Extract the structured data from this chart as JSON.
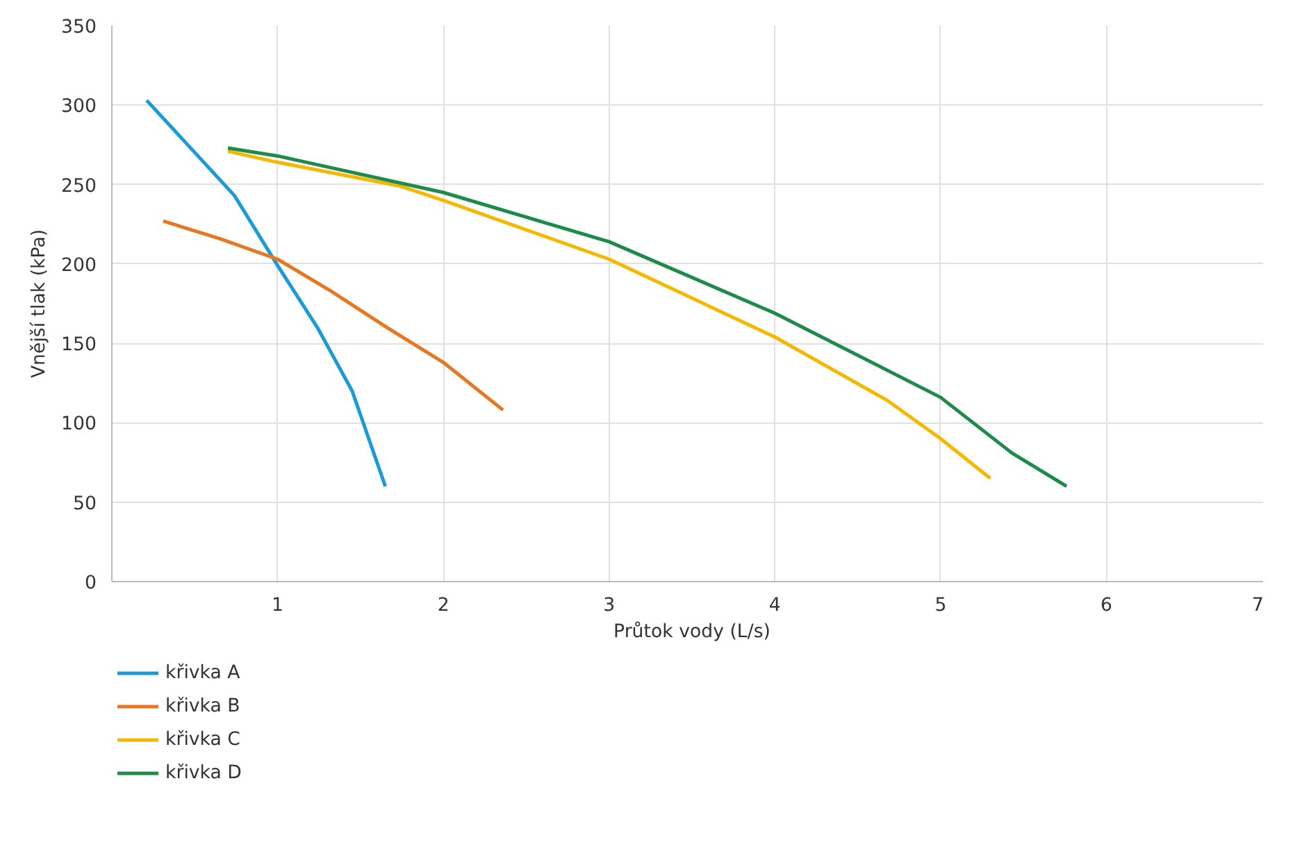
{
  "chart_data": {
    "type": "line",
    "xlabel": "Průtok vody (L/s)",
    "ylabel": "Vnější tlak (kPa)",
    "xlim": [
      0,
      7
    ],
    "ylim": [
      0,
      350
    ],
    "xticks": [
      1,
      2,
      3,
      4,
      5,
      6,
      7
    ],
    "yticks": [
      0,
      50,
      100,
      150,
      200,
      250,
      300,
      350
    ],
    "grid": true,
    "legend": "bottom left",
    "line_style": "solid",
    "series": [
      {
        "name": "křivka A",
        "color": "#1a9ad6",
        "x": [
          0.21,
          0.44,
          0.74,
          1.0,
          1.24,
          1.45,
          1.65
        ],
        "values": [
          303,
          277,
          243,
          199,
          160,
          120,
          60
        ]
      },
      {
        "name": "křivka B",
        "color": "#e87722",
        "x": [
          0.31,
          0.65,
          1.0,
          1.32,
          1.66,
          2.0,
          2.36
        ],
        "values": [
          227,
          216,
          203,
          183,
          160,
          138,
          108
        ]
      },
      {
        "name": "křivka C",
        "color": "#f5b800",
        "x": [
          0.7,
          1.0,
          1.74,
          2.0,
          3.0,
          4.0,
          4.68,
          5.0,
          5.3
        ],
        "values": [
          271,
          264,
          249,
          240,
          203,
          154,
          114,
          90,
          65
        ]
      },
      {
        "name": "křivka D",
        "color": "#1e8a4c",
        "x": [
          0.7,
          1.0,
          2.0,
          3.0,
          4.0,
          5.0,
          5.43,
          5.76
        ],
        "values": [
          273,
          268,
          245,
          214,
          169,
          116,
          81,
          60
        ]
      }
    ]
  }
}
